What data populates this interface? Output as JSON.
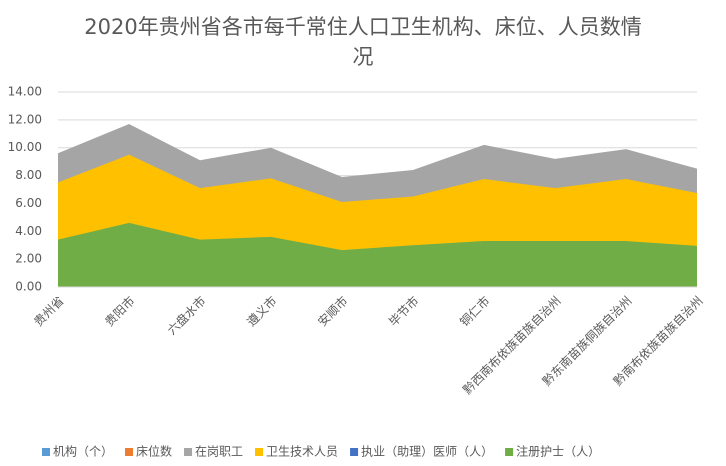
{
  "chart_data": {
    "type": "area",
    "title": "2020年贵州省各市每千常住人口卫生机构、床位、人员数情况",
    "categories": [
      "贵州省",
      "贵阳市",
      "六盘水市",
      "遵义市",
      "安顺市",
      "毕节市",
      "铜仁市",
      "黔西南布依族苗族自治州",
      "黔东南苗族侗族自治州",
      "黔南布依族苗族自治州"
    ],
    "series": [
      {
        "name": "机构（个）",
        "color": "#5b9bd5",
        "values": [
          null,
          null,
          null,
          null,
          null,
          null,
          null,
          null,
          null,
          null
        ]
      },
      {
        "name": "床位数",
        "color": "#ed7d31",
        "values": [
          null,
          null,
          null,
          null,
          null,
          null,
          null,
          null,
          null,
          null
        ]
      },
      {
        "name": "在岗职工",
        "color": "#a5a5a5",
        "values": [
          9.6,
          11.7,
          9.1,
          10.0,
          7.9,
          8.4,
          10.2,
          9.2,
          9.9,
          8.5
        ]
      },
      {
        "name": "卫生技术人员",
        "color": "#ffc000",
        "values": [
          7.5,
          9.5,
          7.1,
          7.8,
          6.1,
          6.5,
          7.75,
          7.1,
          7.75,
          6.75
        ]
      },
      {
        "name": "执业（助理）医师（人）",
        "color": "#4472c4",
        "values": [
          null,
          null,
          null,
          null,
          null,
          null,
          null,
          null,
          null,
          null
        ]
      },
      {
        "name": "注册护士（人）",
        "color": "#70ad47",
        "values": [
          3.4,
          4.6,
          3.4,
          3.6,
          2.65,
          3.0,
          3.3,
          3.3,
          3.3,
          2.95
        ]
      }
    ],
    "ylim": [
      0,
      14
    ],
    "yticks": [
      {
        "value": 0,
        "label": "0.00"
      },
      {
        "value": 2,
        "label": "2.00"
      },
      {
        "value": 4,
        "label": "4.00"
      },
      {
        "value": 6,
        "label": "6.00"
      },
      {
        "value": 8,
        "label": "8.00"
      },
      {
        "value": 10,
        "label": "10.00"
      },
      {
        "value": 12,
        "label": "12.00"
      },
      {
        "value": 14,
        "label": "14.00"
      }
    ],
    "grid": true,
    "legend": "bottom"
  }
}
